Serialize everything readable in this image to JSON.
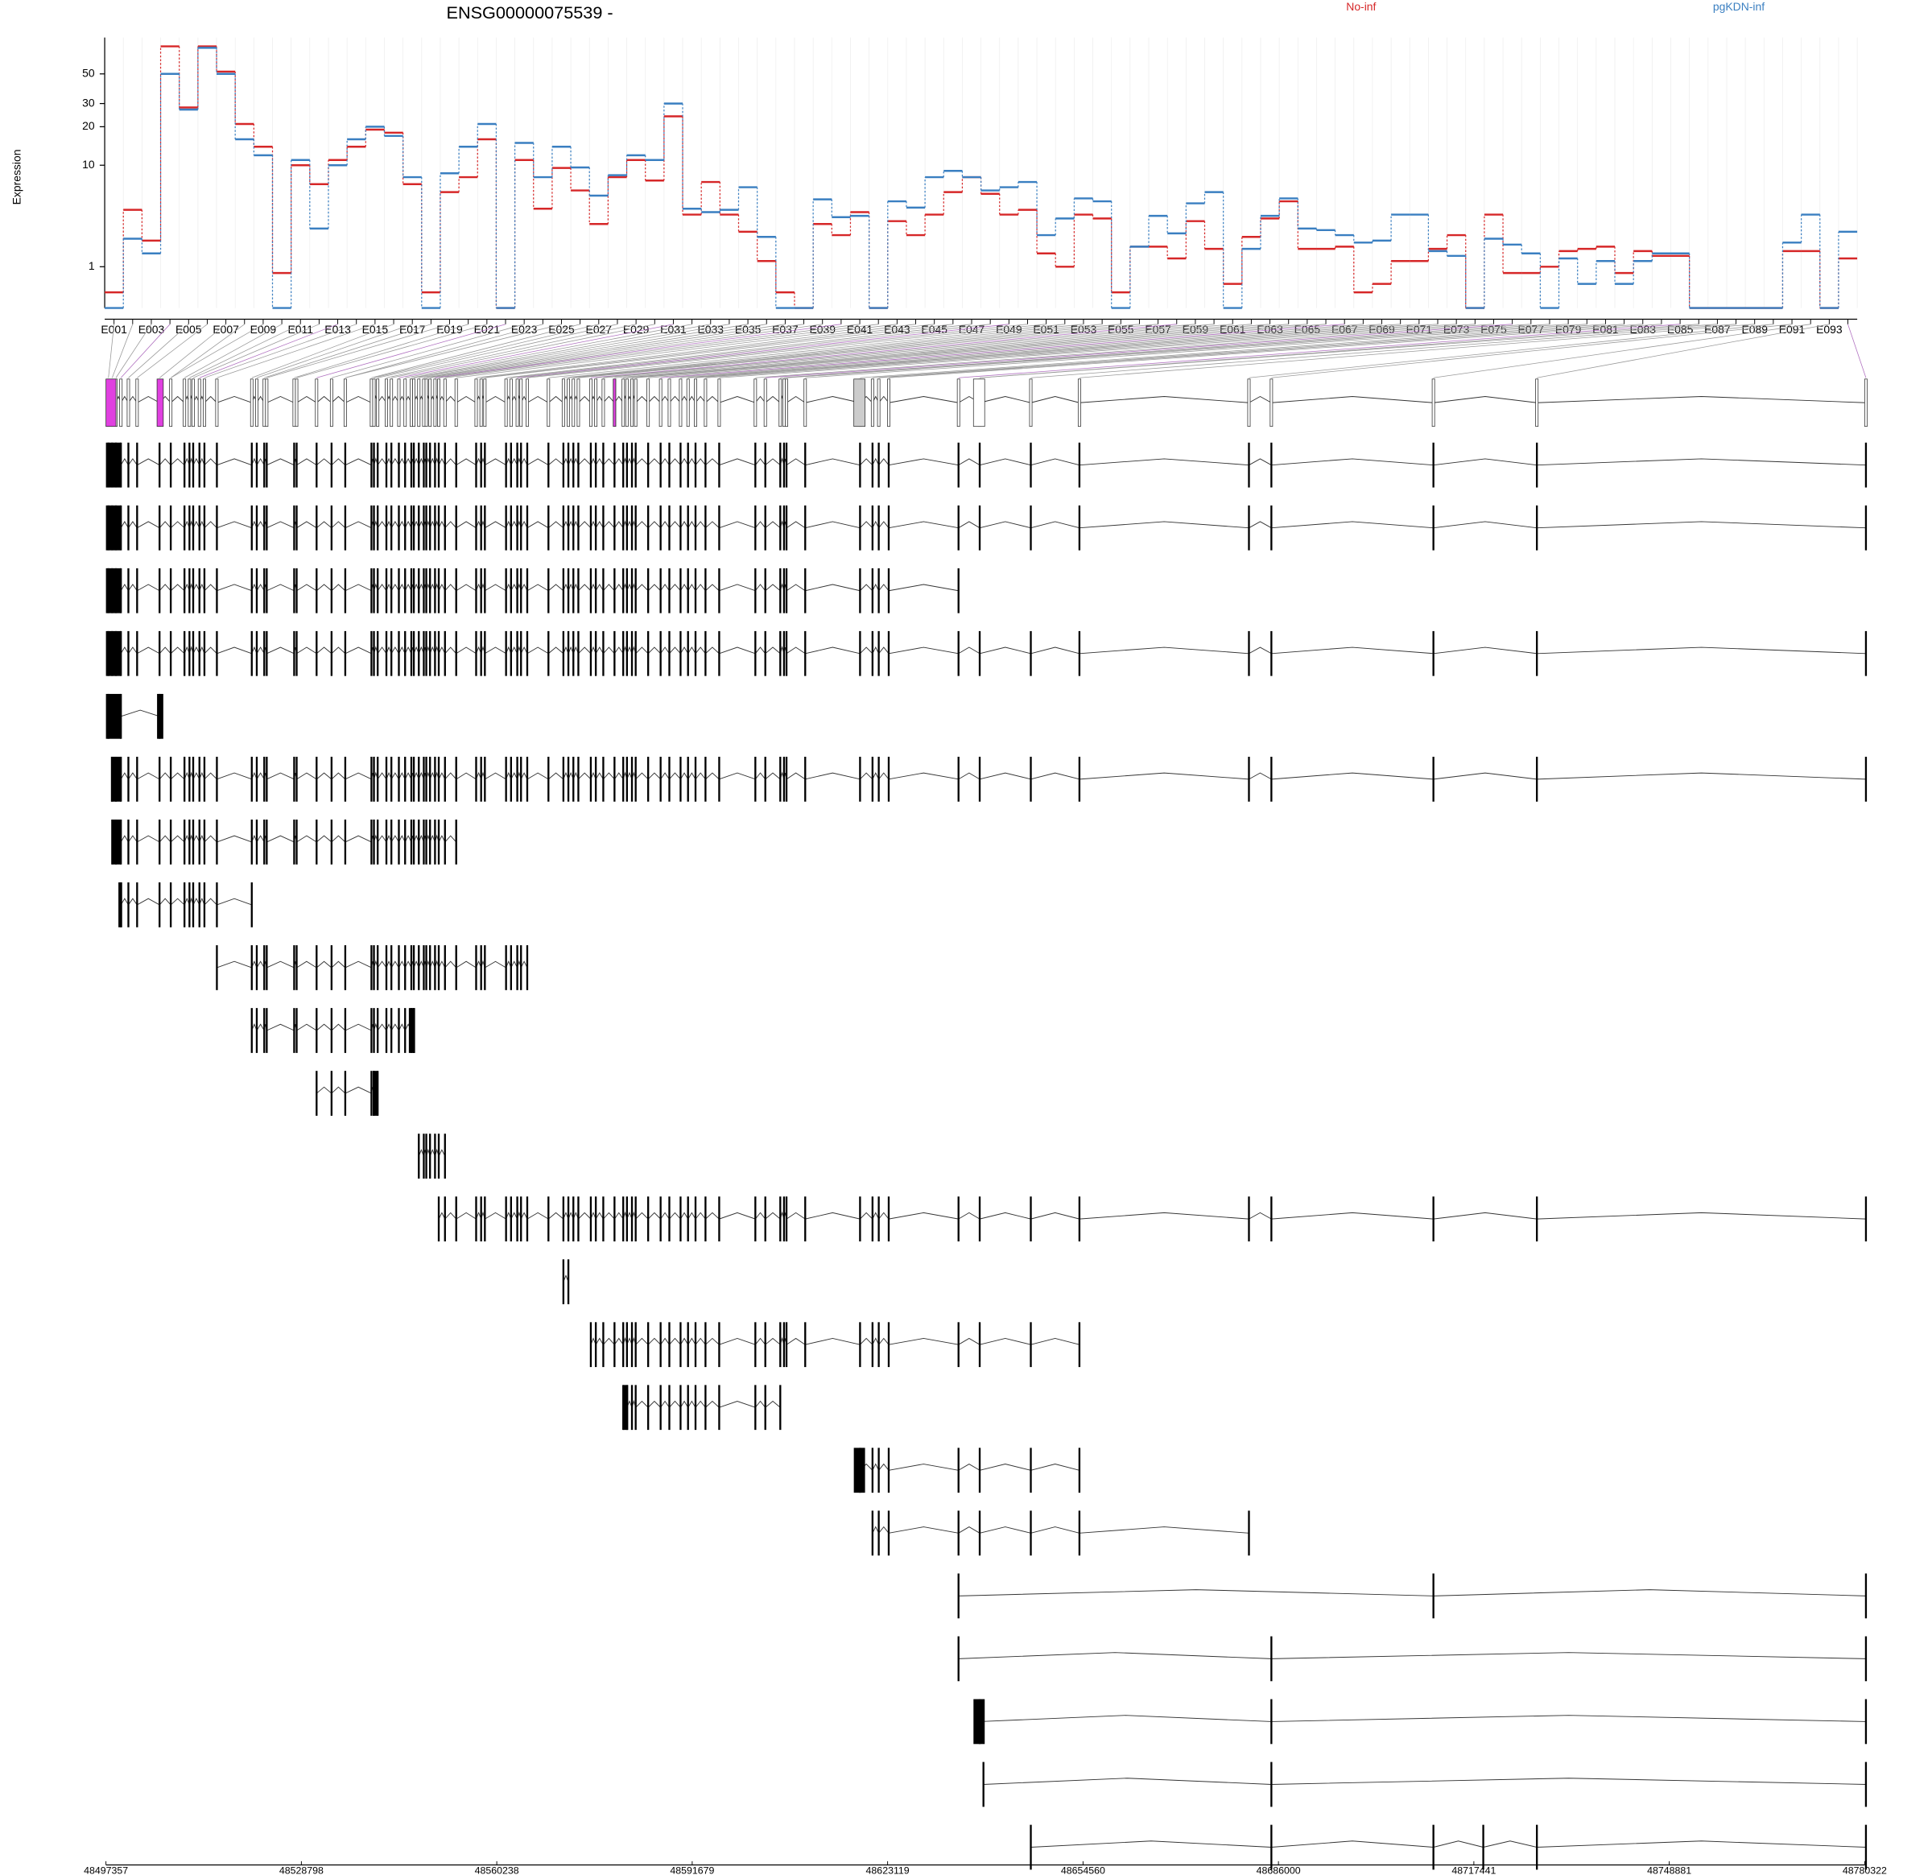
{
  "chart_data": [
    {
      "type": "step",
      "title": "ENSG00000075539 -",
      "ylabel": "Expression",
      "yscale": "log1p",
      "grid": true,
      "legend": "top",
      "categories": [
        "E001",
        null,
        "E003",
        null,
        "E005",
        null,
        "E007",
        null,
        "E009",
        null,
        "E011",
        null,
        "E013",
        null,
        "E015",
        null,
        "E017",
        null,
        "E019",
        null,
        "E021",
        null,
        "E023",
        null,
        "E025",
        null,
        "E027",
        null,
        "E029",
        null,
        "E031",
        null,
        "E033",
        null,
        "E035",
        null,
        "E037",
        null,
        "E039",
        null,
        "E041",
        null,
        "E043",
        null,
        "E045",
        null,
        "E047",
        null,
        "E049",
        null,
        "E051",
        null,
        "E053",
        null,
        "E055",
        null,
        "E057",
        null,
        "E059",
        null,
        "E061",
        null,
        "E063",
        null,
        "E065",
        null,
        "E067",
        null,
        "E069",
        null,
        "E071",
        null,
        "E073",
        null,
        "E075",
        null,
        "E077",
        null,
        "E079",
        null,
        "E081",
        null,
        "E083",
        null,
        "E085",
        null,
        "E087",
        null,
        "E089",
        null,
        "E091",
        null,
        "E093",
        null
      ],
      "ylim": [
        0,
        93
      ],
      "yticks": [
        1,
        10,
        20,
        30,
        50
      ],
      "series": [
        {
          "name": "No-inf",
          "color": "#d62728",
          "values": [
            0.3,
            4.2,
            2.1,
            80,
            28,
            80,
            52,
            21,
            14,
            0.8,
            10,
            7,
            11,
            14,
            19,
            18,
            7,
            0.3,
            6,
            8,
            16,
            0,
            11,
            4.3,
            9.5,
            6.2,
            3.1,
            8,
            11,
            7.5,
            24,
            3.8,
            7.3,
            3.8,
            2.6,
            1.2,
            0.3,
            0,
            3.1,
            2.4,
            4,
            0,
            3.3,
            2.4,
            3.8,
            6,
            8,
            5.8,
            3.8,
            4.2,
            1.5,
            1,
            3.8,
            3.5,
            0.3,
            1.8,
            1.8,
            1.3,
            3.3,
            1.7,
            0.5,
            2.3,
            3.5,
            5,
            1.7,
            1.7,
            1.8,
            0.3,
            0.5,
            1.2,
            1.2,
            1.7,
            2.4,
            0,
            3.8,
            0.8,
            0.8,
            1,
            1.6,
            1.7,
            1.8,
            0.8,
            1.6,
            1.4,
            1.4,
            0,
            0,
            0,
            0,
            0,
            1.6,
            1.6,
            0,
            1.3
          ]
        },
        {
          "name": "pgKDN-inf",
          "color": "#3a7fc1",
          "values": [
            0,
            2.2,
            1.5,
            50,
            27,
            78,
            50,
            16,
            12,
            0,
            11,
            2.8,
            10,
            16,
            20,
            17,
            8,
            0,
            8.6,
            14,
            21,
            0,
            15,
            8,
            14,
            9.6,
            5.6,
            8.3,
            12,
            11,
            30,
            4.3,
            4,
            4.2,
            6.6,
            2.3,
            0,
            0,
            5.2,
            3.6,
            3.7,
            0,
            5,
            4.4,
            8,
            9,
            8,
            6.2,
            6.6,
            7.3,
            2.4,
            3.5,
            5.3,
            5,
            0,
            1.8,
            3.7,
            2.5,
            4.8,
            6,
            0,
            1.7,
            3.7,
            5.3,
            2.8,
            2.7,
            2.4,
            2,
            2.1,
            3.8,
            3.8,
            1.6,
            1.4,
            0,
            2.2,
            1.9,
            1.5,
            0,
            1.3,
            0.5,
            1.2,
            0.5,
            1.2,
            1.5,
            1.5,
            0,
            0,
            0,
            0,
            0,
            2,
            3.8,
            0,
            2.6
          ]
        }
      ]
    },
    {
      "type": "gene_model",
      "xlim": [
        48497357,
        48780322
      ],
      "xticks": [
        48497357,
        48528798,
        48560238,
        48591679,
        48623119,
        48654560,
        48686000,
        48717441,
        48748881,
        48780322
      ]
    }
  ]
}
